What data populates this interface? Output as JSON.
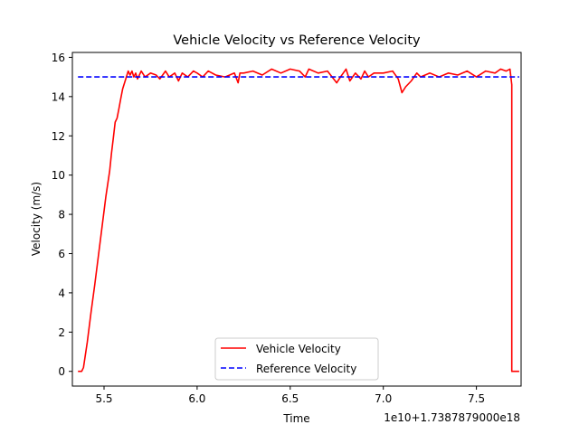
{
  "chart_data": {
    "type": "line",
    "title": "Vehicle Velocity vs Reference Velocity",
    "xlabel": "Time",
    "ylabel": "Velocity (m/s)",
    "x_offset_label": "1e10+1.7387879000e18",
    "xlim": [
      5.33,
      7.74
    ],
    "ylim": [
      -0.75,
      16.25
    ],
    "x_ticks": [
      5.5,
      6.0,
      6.5,
      7.0,
      7.5
    ],
    "x_tick_labels": [
      "5.5",
      "6.0",
      "6.5",
      "7.0",
      "7.5"
    ],
    "y_ticks": [
      0,
      2,
      4,
      6,
      8,
      10,
      12,
      14,
      16
    ],
    "y_tick_labels": [
      "0",
      "2",
      "4",
      "6",
      "8",
      "10",
      "12",
      "14",
      "16"
    ],
    "grid": false,
    "legend_position": "lower-center",
    "series": [
      {
        "name": "Vehicle Velocity",
        "color": "#ff0000",
        "style": "solid",
        "x": [
          5.36,
          5.38,
          5.39,
          5.41,
          5.43,
          5.45,
          5.47,
          5.49,
          5.51,
          5.53,
          5.54,
          5.55,
          5.56,
          5.57,
          5.58,
          5.59,
          5.6,
          5.62,
          5.63,
          5.64,
          5.65,
          5.66,
          5.67,
          5.68,
          5.7,
          5.72,
          5.75,
          5.78,
          5.8,
          5.83,
          5.85,
          5.88,
          5.9,
          5.92,
          5.95,
          5.98,
          6.0,
          6.03,
          6.06,
          6.1,
          6.15,
          6.2,
          6.22,
          6.23,
          6.25,
          6.3,
          6.35,
          6.4,
          6.45,
          6.5,
          6.55,
          6.58,
          6.6,
          6.65,
          6.7,
          6.75,
          6.77,
          6.8,
          6.82,
          6.85,
          6.88,
          6.9,
          6.92,
          6.95,
          7.0,
          7.05,
          7.08,
          7.1,
          7.12,
          7.15,
          7.18,
          7.2,
          7.25,
          7.3,
          7.35,
          7.4,
          7.45,
          7.5,
          7.55,
          7.6,
          7.63,
          7.66,
          7.68,
          7.69,
          7.69,
          7.7,
          7.73
        ],
        "y": [
          0.0,
          0.0,
          0.2,
          1.5,
          3.0,
          4.4,
          5.9,
          7.4,
          8.9,
          10.2,
          11.1,
          11.9,
          12.7,
          12.9,
          13.4,
          13.9,
          14.4,
          15.0,
          15.3,
          15.1,
          15.3,
          15.0,
          15.2,
          14.9,
          15.3,
          15.0,
          15.2,
          15.1,
          14.9,
          15.3,
          15.0,
          15.2,
          14.8,
          15.2,
          15.0,
          15.3,
          15.2,
          15.0,
          15.3,
          15.1,
          15.0,
          15.2,
          14.7,
          15.2,
          15.2,
          15.3,
          15.1,
          15.4,
          15.2,
          15.4,
          15.3,
          15.0,
          15.4,
          15.2,
          15.3,
          14.7,
          15.0,
          15.4,
          14.8,
          15.2,
          14.9,
          15.3,
          15.0,
          15.2,
          15.2,
          15.3,
          14.9,
          14.2,
          14.5,
          14.8,
          15.2,
          15.0,
          15.2,
          15.0,
          15.2,
          15.1,
          15.3,
          15.0,
          15.3,
          15.2,
          15.4,
          15.3,
          15.4,
          14.6,
          0.0,
          0.0,
          0.0
        ]
      },
      {
        "name": "Reference Velocity",
        "color": "#0000ff",
        "style": "dashed",
        "x": [
          5.36,
          7.73
        ],
        "y": [
          15.0,
          15.0
        ]
      }
    ]
  }
}
